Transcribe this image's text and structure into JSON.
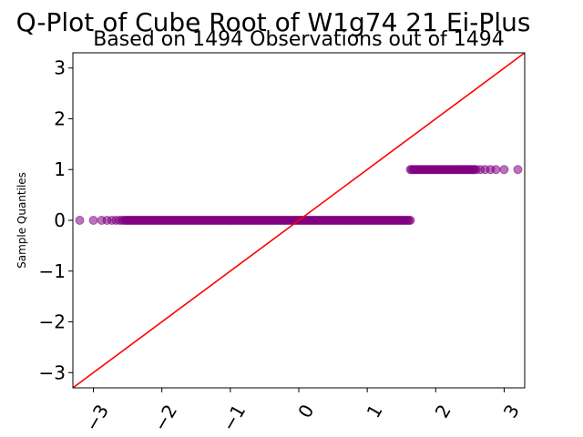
{
  "chart_data": {
    "type": "scatter",
    "title": "Q-Plot of Cube Root of W1g74 21 Ei-Plus",
    "subtitle": "Based on 1494 Observations out of 1494",
    "xlabel": "",
    "ylabel": "Sample Quantiles",
    "xlim": [
      -3.3,
      3.3
    ],
    "ylim": [
      -3.3,
      3.3
    ],
    "xticks": [
      -3,
      -2,
      -1,
      0,
      1,
      2,
      3
    ],
    "yticks": [
      -3,
      -2,
      -1,
      0,
      1,
      2,
      3
    ],
    "xtick_labels": [
      "−3",
      "−2",
      "−1",
      "0",
      "1",
      "2",
      "3"
    ],
    "ytick_labels": [
      "−3",
      "−2",
      "−1",
      "0",
      "1",
      "2",
      "3"
    ],
    "grid": false,
    "reference_line": {
      "from": [
        -3.3,
        -3.3
      ],
      "to": [
        3.3,
        3.3
      ],
      "color": "#ff0000"
    },
    "series": [
      {
        "name": "sample quantiles",
        "color": "#800080",
        "y": 0,
        "x_outliers_low": [
          -3.2,
          -3.0,
          -2.88,
          -2.8,
          -2.73,
          -2.67,
          -2.62,
          -2.58
        ],
        "dense_x_range": [
          -2.55,
          1.63
        ]
      },
      {
        "name": "sample quantiles",
        "color": "#800080",
        "y": 1,
        "dense_x_range": [
          1.63,
          2.6
        ],
        "x_outliers_high": [
          2.65,
          2.72,
          2.8,
          2.88,
          3.0,
          3.2
        ]
      }
    ]
  }
}
